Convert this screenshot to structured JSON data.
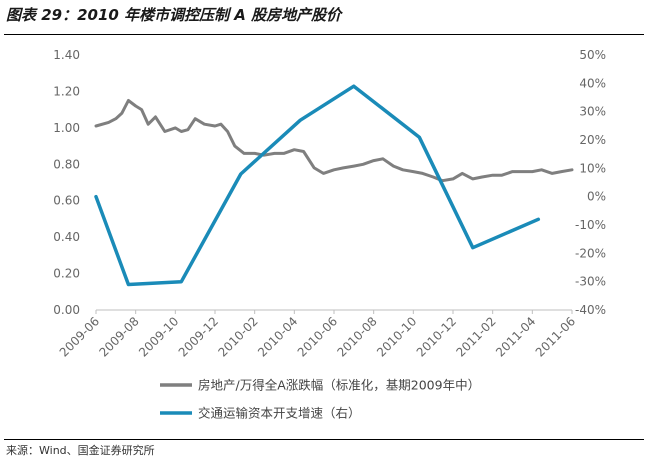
{
  "title": "图表 29：2010 年楼市调控压制 A 股房地产股价",
  "source": "来源：Wind、国金证券研究所",
  "colors": {
    "series_left": "#7f7f7f",
    "series_right": "#1a8bb8",
    "axis": "#bfbfbf"
  },
  "chart_data": {
    "type": "line",
    "x_ticks": [
      "2009-06",
      "2009-08",
      "2009-10",
      "2009-12",
      "2010-02",
      "2010-04",
      "2010-06",
      "2010-08",
      "2010-10",
      "2010-12",
      "2011-02",
      "2011-04",
      "2011-06"
    ],
    "y_left": {
      "ylim": [
        0.0,
        1.4
      ],
      "ticks": [
        "0.00",
        "0.20",
        "0.40",
        "0.60",
        "0.80",
        "1.00",
        "1.20",
        "1.40"
      ]
    },
    "y_right": {
      "ylim": [
        -40,
        50
      ],
      "ticks": [
        "-40%",
        "-30%",
        "-20%",
        "-10%",
        "0%",
        "10%",
        "20%",
        "30%",
        "40%",
        "50%"
      ]
    },
    "grid": false,
    "legend_position": "bottom",
    "series": [
      {
        "name": "房地产/万得全A涨跌幅（标准化，基期2009年中）",
        "axis": "left",
        "points": [
          [
            "2009-06",
            1.01
          ],
          [
            "2009-06-20",
            1.03
          ],
          [
            "2009-07",
            1.05
          ],
          [
            "2009-07-10",
            1.08
          ],
          [
            "2009-07-20",
            1.15
          ],
          [
            "2009-08",
            1.12
          ],
          [
            "2009-08-10",
            1.1
          ],
          [
            "2009-08-20",
            1.02
          ],
          [
            "2009-09",
            1.06
          ],
          [
            "2009-09-15",
            0.98
          ],
          [
            "2009-10",
            1.0
          ],
          [
            "2009-10-10",
            0.98
          ],
          [
            "2009-10-20",
            0.99
          ],
          [
            "2009-11",
            1.05
          ],
          [
            "2009-11-15",
            1.02
          ],
          [
            "2009-12",
            1.01
          ],
          [
            "2009-12-10",
            1.02
          ],
          [
            "2009-12-20",
            0.98
          ],
          [
            "2010-01",
            0.9
          ],
          [
            "2010-01-15",
            0.86
          ],
          [
            "2010-02",
            0.86
          ],
          [
            "2010-02-15",
            0.85
          ],
          [
            "2010-03",
            0.86
          ],
          [
            "2010-03-15",
            0.86
          ],
          [
            "2010-04",
            0.88
          ],
          [
            "2010-04-15",
            0.87
          ],
          [
            "2010-05",
            0.78
          ],
          [
            "2010-05-15",
            0.75
          ],
          [
            "2010-06",
            0.77
          ],
          [
            "2010-06-15",
            0.78
          ],
          [
            "2010-07",
            0.79
          ],
          [
            "2010-07-15",
            0.8
          ],
          [
            "2010-08",
            0.82
          ],
          [
            "2010-08-15",
            0.83
          ],
          [
            "2010-09",
            0.79
          ],
          [
            "2010-09-15",
            0.77
          ],
          [
            "2010-10",
            0.76
          ],
          [
            "2010-10-15",
            0.75
          ],
          [
            "2010-11",
            0.73
          ],
          [
            "2010-11-15",
            0.71
          ],
          [
            "2010-12",
            0.72
          ],
          [
            "2010-12-15",
            0.75
          ],
          [
            "2011-01",
            0.72
          ],
          [
            "2011-01-15",
            0.73
          ],
          [
            "2011-02",
            0.74
          ],
          [
            "2011-02-15",
            0.74
          ],
          [
            "2011-03",
            0.76
          ],
          [
            "2011-03-15",
            0.76
          ],
          [
            "2011-04",
            0.76
          ],
          [
            "2011-04-15",
            0.77
          ],
          [
            "2011-05",
            0.75
          ],
          [
            "2011-05-15",
            0.76
          ],
          [
            "2011-06",
            0.77
          ]
        ]
      },
      {
        "name": "交通运输资本开支增速（右）",
        "axis": "right",
        "points": [
          [
            "2009-06",
            0
          ],
          [
            "2009-07-20",
            -31
          ],
          [
            "2009-10-10",
            -30
          ],
          [
            "2010-01-10",
            8
          ],
          [
            "2010-04-10",
            27
          ],
          [
            "2010-07-01",
            39
          ],
          [
            "2010-10-10",
            21
          ],
          [
            "2011-01-01",
            -18
          ],
          [
            "2011-04-10",
            -8
          ]
        ]
      }
    ]
  }
}
